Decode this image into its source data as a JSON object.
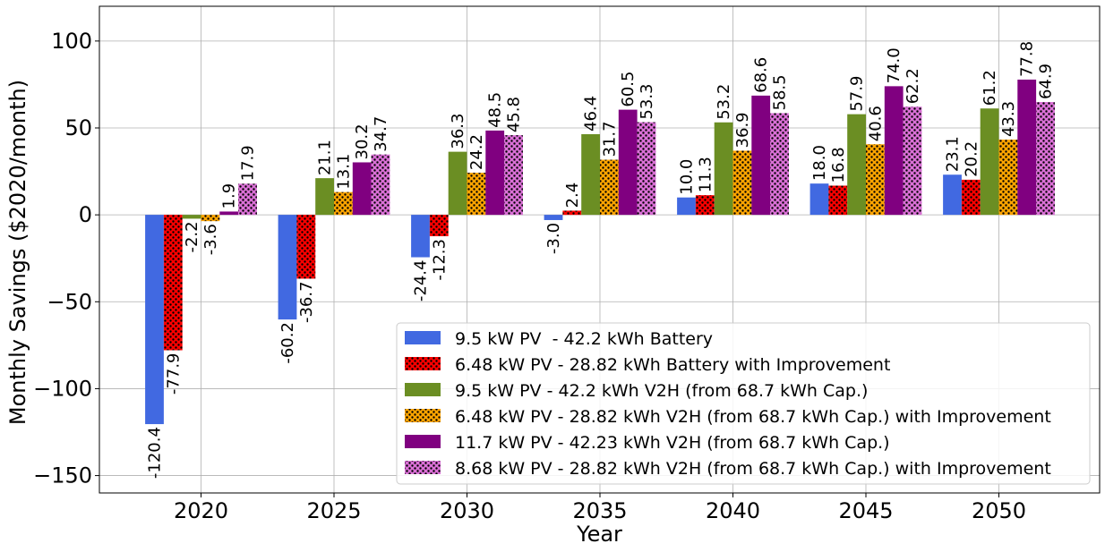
{
  "chart_data": {
    "type": "bar",
    "title": "",
    "xlabel": "Year",
    "ylabel": "Monthly Savings ($2020/month)",
    "categories": [
      "2020",
      "2025",
      "2030",
      "2035",
      "2040",
      "2045",
      "2050"
    ],
    "ylim": [
      -160,
      120
    ],
    "yticks": [
      -150,
      -100,
      -50,
      0,
      50,
      100
    ],
    "ytick_labels": [
      "−150",
      "−100",
      "−50",
      "0",
      "50",
      "100"
    ],
    "grid": true,
    "legend_position": "lower-right",
    "series": [
      {
        "name": "9.5 kW PV  - 42.2 kWh Battery",
        "color": "#4169E1",
        "hatch": "none",
        "values": [
          -120.4,
          -60.2,
          -24.4,
          -3.0,
          10.0,
          18.0,
          23.1
        ],
        "labels": [
          "-120.4",
          "-60.2",
          "-24.4",
          "-3.0",
          "10.0",
          "18.0",
          "23.1"
        ]
      },
      {
        "name": "6.48 kW PV - 28.82 kWh Battery with Improvement",
        "color": "#FF0000",
        "hatch": "dots",
        "values": [
          -77.9,
          -36.7,
          -12.3,
          2.4,
          11.3,
          16.8,
          20.2
        ],
        "labels": [
          "-77.9",
          "-36.7",
          "-12.3",
          "2.4",
          "11.3",
          "16.8",
          "20.2"
        ]
      },
      {
        "name": "9.5 kW PV - 42.2 kWh V2H (from 68.7 kWh Cap.)",
        "color": "#6B8E23",
        "hatch": "none",
        "values": [
          -2.2,
          21.1,
          36.3,
          46.4,
          53.2,
          57.9,
          61.2
        ],
        "labels": [
          "-2.2",
          "21.1",
          "36.3",
          "46.4",
          "53.2",
          "57.9",
          "61.2"
        ]
      },
      {
        "name": "6.48 kW PV - 28.82 kWh V2H (from 68.7 kWh Cap.) with Improvement",
        "color": "#FFA500",
        "hatch": "dots",
        "values": [
          -3.6,
          13.1,
          24.2,
          31.7,
          36.9,
          40.6,
          43.3
        ],
        "labels": [
          "-3.6",
          "13.1",
          "24.2",
          "31.7",
          "36.9",
          "40.6",
          "43.3"
        ]
      },
      {
        "name": "11.7 kW PV - 42.23 kWh V2H (from 68.7 kWh Cap.)",
        "color": "#800080",
        "hatch": "none",
        "values": [
          1.9,
          30.2,
          48.5,
          60.5,
          68.6,
          74.0,
          77.8
        ],
        "labels": [
          "1.9",
          "30.2",
          "48.5",
          "60.5",
          "68.6",
          "74.0",
          "77.8"
        ]
      },
      {
        "name": "8.68 kW PV - 28.82 kWh V2H (from 68.7 kWh Cap.) with Improvement",
        "color": "#DA70D6",
        "hatch": "dots",
        "values": [
          17.9,
          34.7,
          45.8,
          53.3,
          58.5,
          62.2,
          64.9
        ],
        "labels": [
          "17.9",
          "34.7",
          "45.8",
          "53.3",
          "58.5",
          "62.2",
          "64.9"
        ]
      }
    ]
  }
}
